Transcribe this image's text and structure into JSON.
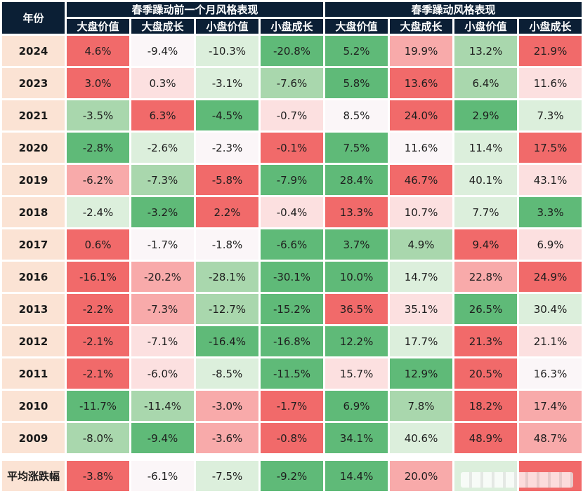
{
  "header": {
    "year_label": "年份",
    "group_before": "春季躁动前一个月风格表现",
    "group_during": "春季躁动风格表现",
    "styles": [
      "大盘价值",
      "大盘成长",
      "小盘价值",
      "小盘成长"
    ]
  },
  "colors": {
    "header_bg": "#0b1f35",
    "year_bg": "#fbe3d4",
    "deep_red": "#f16a6a",
    "mid_red": "#f8aaaa",
    "light_red": "#fce0e0",
    "pale": "#fbf6f8",
    "light_green": "#dcefdc",
    "mid_green": "#a9d7ad",
    "deep_green": "#5fba78"
  },
  "rows": [
    {
      "year": "2024",
      "before": [
        "4.6%",
        "-9.4%",
        "-10.3%",
        "-20.8%"
      ],
      "during": [
        "5.2%",
        "19.9%",
        "13.2%",
        "21.9%"
      ],
      "before_tone": [
        "deep_red",
        "pale",
        "light_green",
        "deep_green"
      ],
      "during_tone": [
        "deep_green",
        "mid_red",
        "mid_green",
        "deep_red"
      ]
    },
    {
      "year": "2023",
      "before": [
        "3.0%",
        "0.3%",
        "-3.1%",
        "-7.6%"
      ],
      "during": [
        "5.8%",
        "13.6%",
        "6.4%",
        "11.6%"
      ],
      "before_tone": [
        "deep_red",
        "light_red",
        "light_green",
        "mid_green"
      ],
      "during_tone": [
        "deep_green",
        "deep_red",
        "mid_green",
        "light_red"
      ]
    },
    {
      "year": "2021",
      "before": [
        "-3.5%",
        "6.3%",
        "-4.5%",
        "-0.7%"
      ],
      "during": [
        "8.5%",
        "24.0%",
        "2.9%",
        "7.3%"
      ],
      "before_tone": [
        "mid_green",
        "deep_red",
        "deep_green",
        "light_red"
      ],
      "during_tone": [
        "pale",
        "deep_red",
        "deep_green",
        "light_green"
      ]
    },
    {
      "year": "2020",
      "before": [
        "-2.8%",
        "-2.6%",
        "-2.3%",
        "-0.1%"
      ],
      "during": [
        "7.5%",
        "11.6%",
        "11.4%",
        "17.5%"
      ],
      "before_tone": [
        "deep_green",
        "light_green",
        "pale",
        "deep_red"
      ],
      "during_tone": [
        "deep_green",
        "pale",
        "light_green",
        "deep_red"
      ]
    },
    {
      "year": "2019",
      "before": [
        "-6.2%",
        "-7.3%",
        "-5.8%",
        "-7.9%"
      ],
      "during": [
        "28.4%",
        "46.7%",
        "40.1%",
        "43.1%"
      ],
      "before_tone": [
        "mid_red",
        "mid_green",
        "deep_red",
        "deep_green"
      ],
      "during_tone": [
        "deep_green",
        "deep_red",
        "light_green",
        "light_red"
      ]
    },
    {
      "year": "2018",
      "before": [
        "-2.4%",
        "-3.2%",
        "2.2%",
        "-0.4%"
      ],
      "during": [
        "13.3%",
        "10.7%",
        "7.7%",
        "3.3%"
      ],
      "before_tone": [
        "light_green",
        "deep_green",
        "deep_red",
        "light_red"
      ],
      "during_tone": [
        "deep_red",
        "light_red",
        "light_green",
        "deep_green"
      ]
    },
    {
      "year": "2017",
      "before": [
        "0.6%",
        "-1.7%",
        "-1.8%",
        "-6.6%"
      ],
      "during": [
        "3.7%",
        "4.9%",
        "9.4%",
        "6.9%"
      ],
      "before_tone": [
        "deep_red",
        "pale",
        "pale",
        "deep_green"
      ],
      "during_tone": [
        "deep_green",
        "mid_green",
        "deep_red",
        "light_red"
      ]
    },
    {
      "year": "2016",
      "before": [
        "-16.1%",
        "-20.2%",
        "-28.1%",
        "-30.1%"
      ],
      "during": [
        "10.0%",
        "14.7%",
        "22.8%",
        "24.9%"
      ],
      "before_tone": [
        "deep_red",
        "mid_red",
        "mid_green",
        "deep_green"
      ],
      "during_tone": [
        "deep_green",
        "light_green",
        "mid_red",
        "deep_red"
      ]
    },
    {
      "year": "2013",
      "before": [
        "-2.2%",
        "-7.3%",
        "-12.7%",
        "-15.2%"
      ],
      "during": [
        "36.5%",
        "35.1%",
        "26.5%",
        "30.4%"
      ],
      "before_tone": [
        "deep_red",
        "mid_red",
        "mid_green",
        "deep_green"
      ],
      "during_tone": [
        "deep_red",
        "light_red",
        "deep_green",
        "light_green"
      ]
    },
    {
      "year": "2012",
      "before": [
        "-2.1%",
        "-7.1%",
        "-16.4%",
        "-16.8%"
      ],
      "during": [
        "12.2%",
        "17.7%",
        "21.3%",
        "21.1%"
      ],
      "before_tone": [
        "deep_red",
        "light_red",
        "deep_green",
        "deep_green"
      ],
      "during_tone": [
        "deep_green",
        "light_green",
        "deep_red",
        "light_red"
      ]
    },
    {
      "year": "2011",
      "before": [
        "-2.1%",
        "-6.0%",
        "-8.5%",
        "-11.5%"
      ],
      "during": [
        "15.7%",
        "12.9%",
        "20.5%",
        "16.3%"
      ],
      "before_tone": [
        "deep_red",
        "light_red",
        "light_green",
        "deep_green"
      ],
      "during_tone": [
        "light_red",
        "deep_green",
        "deep_red",
        "pale"
      ]
    },
    {
      "year": "2010",
      "before": [
        "-11.7%",
        "-11.4%",
        "-3.0%",
        "-1.7%"
      ],
      "during": [
        "6.9%",
        "7.8%",
        "18.2%",
        "17.4%"
      ],
      "before_tone": [
        "deep_green",
        "mid_green",
        "mid_red",
        "deep_red"
      ],
      "during_tone": [
        "deep_green",
        "mid_green",
        "deep_red",
        "mid_red"
      ]
    },
    {
      "year": "2009",
      "before": [
        "-8.0%",
        "-9.4%",
        "-3.6%",
        "-0.8%"
      ],
      "during": [
        "34.1%",
        "40.6%",
        "48.9%",
        "48.7%"
      ],
      "before_tone": [
        "mid_green",
        "deep_green",
        "mid_red",
        "deep_red"
      ],
      "during_tone": [
        "deep_green",
        "light_green",
        "deep_red",
        "mid_red"
      ]
    }
  ],
  "average": {
    "label": "平均涨跌幅",
    "before": [
      "-3.8%",
      "-6.1%",
      "-7.5%",
      "-9.2%"
    ],
    "during": [
      "14.4%",
      "20.0%",
      "",
      ""
    ],
    "before_tone": [
      "deep_red",
      "pale",
      "light_green",
      "deep_green"
    ],
    "during_tone": [
      "deep_green",
      "mid_red",
      "light_green",
      "deep_red"
    ]
  }
}
